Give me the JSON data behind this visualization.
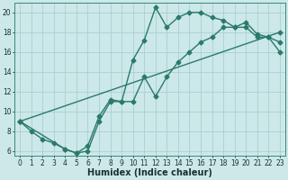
{
  "xlabel": "Humidex (Indice chaleur)",
  "bg_color": "#cce8e8",
  "line_color": "#2a7a6a",
  "grid_color": "#aacfcf",
  "xlim": [
    -0.5,
    23.5
  ],
  "ylim": [
    5.5,
    21.0
  ],
  "xticks": [
    0,
    1,
    2,
    3,
    4,
    5,
    6,
    7,
    8,
    9,
    10,
    11,
    12,
    13,
    14,
    15,
    16,
    17,
    18,
    19,
    20,
    21,
    22,
    23
  ],
  "yticks": [
    6,
    8,
    10,
    12,
    14,
    16,
    18,
    20
  ],
  "line1_x": [
    0,
    1,
    2,
    3,
    4,
    5,
    6,
    7,
    8,
    9,
    10,
    11,
    12,
    13,
    14,
    15,
    16,
    17,
    18,
    19,
    20,
    21,
    22,
    23
  ],
  "line1_y": [
    9.0,
    8.0,
    7.2,
    6.8,
    6.2,
    5.8,
    6.5,
    9.5,
    11.2,
    11.0,
    15.2,
    17.2,
    20.5,
    18.5,
    19.5,
    20.0,
    20.0,
    19.5,
    19.2,
    18.5,
    19.0,
    17.8,
    17.5,
    17.0
  ],
  "line2_x": [
    0,
    23
  ],
  "line2_y": [
    9.0,
    18.0
  ],
  "line3_x": [
    0,
    4,
    5,
    6,
    7,
    8,
    9,
    10,
    11,
    12,
    13,
    14,
    15,
    16,
    17,
    18,
    19,
    20,
    21,
    22,
    23
  ],
  "line3_y": [
    9.0,
    6.2,
    5.8,
    6.0,
    9.0,
    11.0,
    11.0,
    11.0,
    13.5,
    11.5,
    13.5,
    15.0,
    16.0,
    17.0,
    17.5,
    18.5,
    18.5,
    18.5,
    17.5,
    17.5,
    16.0
  ],
  "marker": "D",
  "markersize": 2.5,
  "linewidth": 1.0,
  "xlabel_fontsize": 7,
  "tick_fontsize": 5.5
}
